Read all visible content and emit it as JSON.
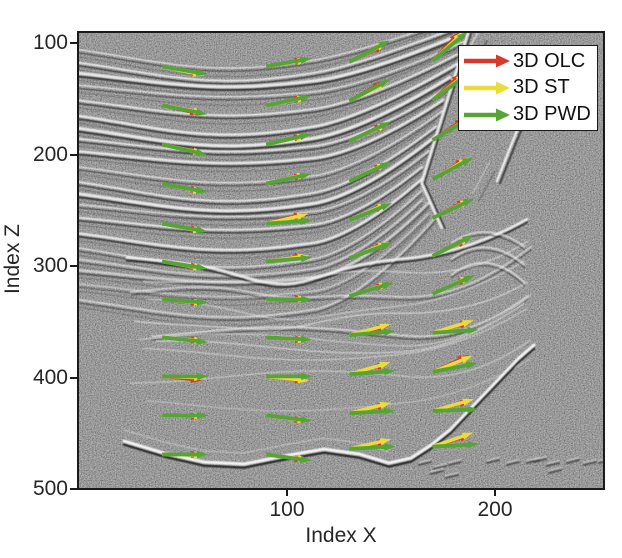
{
  "figure": {
    "kind": "seismic dip-estimation comparison figure",
    "background_color": "#ffffff",
    "plot_border_color": "#1a1a1a",
    "seismic_gray": "#a0a0a0"
  },
  "chart_data": {
    "type": "heatmap",
    "subtype": "seismic-image-with-dip-vector-overlay",
    "title": "",
    "xlabel": "Index X",
    "ylabel": "Index Z",
    "x_ticks": [
      100,
      200
    ],
    "z_ticks": [
      100,
      200,
      300,
      400,
      500
    ],
    "xlim": [
      0,
      252
    ],
    "zlim": [
      91,
      500
    ],
    "z_axis_inverted": true,
    "grid": false,
    "colors": {
      "olc": "#d63a2a",
      "st": "#e9dd3a",
      "pwd": "#55a435"
    },
    "legend": {
      "position": "top-right",
      "entries": [
        {
          "label": "3D OLC",
          "series": "olc",
          "color": "#d63a2a"
        },
        {
          "label": "3D ST",
          "series": "st",
          "color": "#e9dd3a"
        },
        {
          "label": "3D PWD",
          "series": "pwd",
          "color": "#55a435"
        }
      ]
    },
    "arrow_length_index_units": 20,
    "dip_sign_convention": "angle in degrees above horizontal; positive = event rises toward larger Index X",
    "arrows": [
      {
        "x": 40,
        "z": 121,
        "pwd": -10,
        "st": -12,
        "olc": -11
      },
      {
        "x": 40,
        "z": 156,
        "pwd": -11,
        "st": -10,
        "olc": -13
      },
      {
        "x": 40,
        "z": 191,
        "pwd": -13,
        "st": -12,
        "olc": -12
      },
      {
        "x": 40,
        "z": 226,
        "pwd": -11,
        "st": -12,
        "olc": -11
      },
      {
        "x": 40,
        "z": 262,
        "pwd": -10,
        "st": -11,
        "olc": -10
      },
      {
        "x": 40,
        "z": 296,
        "pwd": -9,
        "st": -10,
        "olc": -9
      },
      {
        "x": 40,
        "z": 330,
        "pwd": -4,
        "st": -5,
        "olc": -5
      },
      {
        "x": 40,
        "z": 364,
        "pwd": -6,
        "st": -5,
        "olc": -5
      },
      {
        "x": 40,
        "z": 399,
        "pwd": 0,
        "st": -2,
        "olc": -6
      },
      {
        "x": 40,
        "z": 434,
        "pwd": 0,
        "st": -1,
        "olc": -2
      },
      {
        "x": 40,
        "z": 469,
        "pwd": 0,
        "st": -1,
        "olc": 0
      },
      {
        "x": 90,
        "z": 121,
        "pwd": 10,
        "st": 9,
        "olc": 10
      },
      {
        "x": 90,
        "z": 156,
        "pwd": 12,
        "st": 11,
        "olc": 12
      },
      {
        "x": 90,
        "z": 191,
        "pwd": 13,
        "st": 12,
        "olc": 13
      },
      {
        "x": 90,
        "z": 226,
        "pwd": 12,
        "st": 13,
        "olc": 12
      },
      {
        "x": 90,
        "z": 262,
        "pwd": 4,
        "st": 13,
        "olc": 15
      },
      {
        "x": 90,
        "z": 296,
        "pwd": 5,
        "st": 8,
        "olc": 9
      },
      {
        "x": 90,
        "z": 330,
        "pwd": 0,
        "st": 1,
        "olc": 1
      },
      {
        "x": 90,
        "z": 364,
        "pwd": -3,
        "st": -4,
        "olc": -4
      },
      {
        "x": 90,
        "z": 399,
        "pwd": 0,
        "st": -6,
        "olc": -7
      },
      {
        "x": 90,
        "z": 434,
        "pwd": -7,
        "st": -8,
        "olc": -8
      },
      {
        "x": 90,
        "z": 469,
        "pwd": -8,
        "st": -7,
        "olc": -9
      },
      {
        "x": 130,
        "z": 117,
        "pwd": 28,
        "st": 27,
        "olc": 25
      },
      {
        "x": 130,
        "z": 152,
        "pwd": 28,
        "st": 26,
        "olc": 30
      },
      {
        "x": 130,
        "z": 188,
        "pwd": 25,
        "st": 24,
        "olc": 26
      },
      {
        "x": 130,
        "z": 224,
        "pwd": 25,
        "st": 26,
        "olc": 26
      },
      {
        "x": 130,
        "z": 259,
        "pwd": 22,
        "st": 24,
        "olc": 23
      },
      {
        "x": 130,
        "z": 293,
        "pwd": 20,
        "st": 22,
        "olc": 21
      },
      {
        "x": 130,
        "z": 327,
        "pwd": 17,
        "st": 18,
        "olc": 18
      },
      {
        "x": 130,
        "z": 362,
        "pwd": 5,
        "st": 15,
        "olc": 13
      },
      {
        "x": 130,
        "z": 397,
        "pwd": 4,
        "st": 16,
        "olc": 15
      },
      {
        "x": 130,
        "z": 432,
        "pwd": 3,
        "st": 14,
        "olc": 13
      },
      {
        "x": 130,
        "z": 464,
        "pwd": 3,
        "st": 13,
        "olc": 12
      },
      {
        "x": 170,
        "z": 116,
        "pwd": 40,
        "st": 43,
        "olc": 47
      },
      {
        "x": 170,
        "z": 151,
        "pwd": 36,
        "st": 38,
        "olc": 42
      },
      {
        "x": 170,
        "z": 187,
        "pwd": 30,
        "st": 31,
        "olc": 34
      },
      {
        "x": 170,
        "z": 222,
        "pwd": 28,
        "st": 30,
        "olc": 32
      },
      {
        "x": 170,
        "z": 257,
        "pwd": 25,
        "st": 26,
        "olc": 28
      },
      {
        "x": 170,
        "z": 291,
        "pwd": 27,
        "st": 26,
        "olc": 25
      },
      {
        "x": 170,
        "z": 325,
        "pwd": 24,
        "st": 25,
        "olc": 24
      },
      {
        "x": 170,
        "z": 360,
        "pwd": 4,
        "st": 17,
        "olc": 16
      },
      {
        "x": 170,
        "z": 395,
        "pwd": 11,
        "st": 22,
        "olc": 25
      },
      {
        "x": 170,
        "z": 430,
        "pwd": 2,
        "st": 16,
        "olc": 15
      },
      {
        "x": 170,
        "z": 462,
        "pwd": 3,
        "st": 19,
        "olc": 17
      }
    ]
  }
}
